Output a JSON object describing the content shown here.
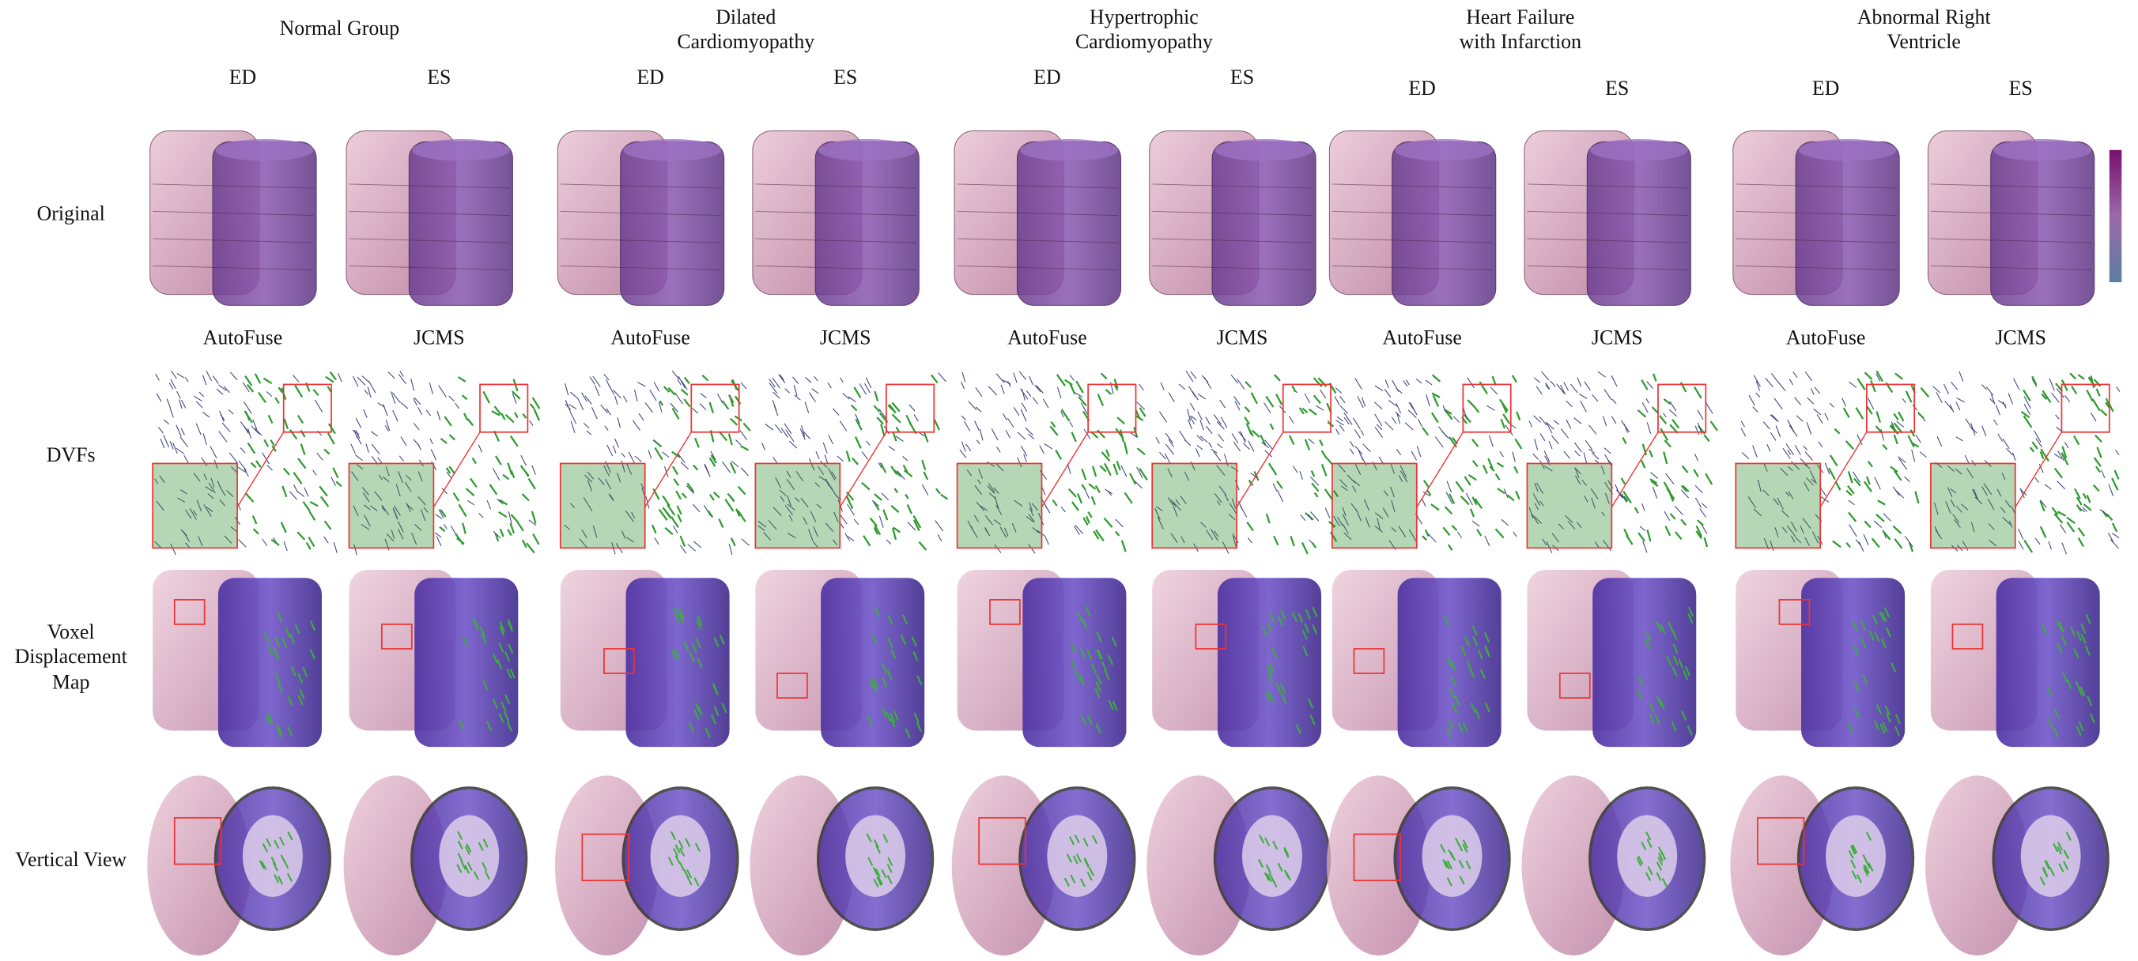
{
  "groups": [
    {
      "title_lines": [
        "Normal Group"
      ],
      "phases": [
        "ED",
        "ES"
      ],
      "methods": [
        "AutoFuse",
        "JCMS"
      ]
    },
    {
      "title_lines": [
        "Dilated",
        "Cardiomyopathy"
      ],
      "phases": [
        "ED",
        "ES"
      ],
      "methods": [
        "AutoFuse",
        "JCMS"
      ]
    },
    {
      "title_lines": [
        "Hypertrophic",
        "Cardiomyopathy"
      ],
      "phases": [
        "ED",
        "ES"
      ],
      "methods": [
        "AutoFuse",
        "JCMS"
      ]
    },
    {
      "title_lines": [
        "Heart Failure",
        "with Infarction"
      ],
      "phases": [
        "ED",
        "ES"
      ],
      "methods": [
        "AutoFuse",
        "JCMS"
      ]
    },
    {
      "title_lines": [
        "Abnormal Right",
        "Ventricle"
      ],
      "phases": [
        "ED",
        "ES"
      ],
      "methods": [
        "AutoFuse",
        "JCMS"
      ]
    }
  ],
  "row_labels": [
    {
      "lines": [
        "Original"
      ]
    },
    {
      "lines": [
        "DVFs"
      ]
    },
    {
      "lines": [
        "Voxel",
        "Displacement",
        "Map"
      ]
    },
    {
      "lines": [
        "Vertical View"
      ]
    }
  ]
}
